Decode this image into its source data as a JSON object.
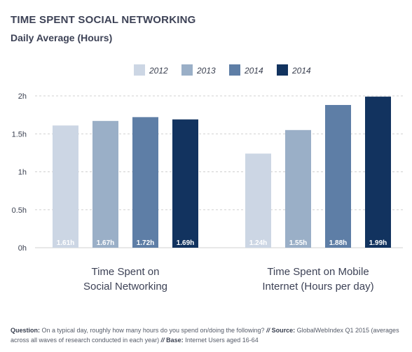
{
  "title": "TIME SPENT SOCIAL NETWORKING",
  "subtitle": "Daily Average (Hours)",
  "colors": {
    "s2012": "#ccd6e4",
    "s2013": "#9aafc7",
    "s2014a": "#5e7ea6",
    "s2014b": "#12335f",
    "grid": "#d0d0d0",
    "text": "#3a4050"
  },
  "chart_data": {
    "type": "bar",
    "title": "TIME SPENT SOCIAL NETWORKING",
    "subtitle": "Daily Average (Hours)",
    "categories": [
      "Time Spent on Social Networking",
      "Time Spent on Mobile Internet (Hours per day)"
    ],
    "category_lines": [
      [
        "Time Spent on",
        "Social Networking"
      ],
      [
        "Time Spent on Mobile",
        "Internet (Hours per day)"
      ]
    ],
    "series": [
      {
        "name": "2012",
        "values": [
          1.61,
          1.24
        ],
        "labels": [
          "1.61h",
          "1.24h"
        ],
        "color": "#ccd6e4"
      },
      {
        "name": "2013",
        "values": [
          1.67,
          1.55
        ],
        "labels": [
          "1.67h",
          "1.55h"
        ],
        "color": "#9aafc7"
      },
      {
        "name": "2014",
        "values": [
          1.72,
          1.88
        ],
        "labels": [
          "1.72h",
          "1.88h"
        ],
        "color": "#5e7ea6"
      },
      {
        "name": "2014",
        "values": [
          1.69,
          1.99
        ],
        "labels": [
          "1.69h",
          "1.99h"
        ],
        "color": "#12335f"
      }
    ],
    "yticks": [
      "0h",
      "0.5h",
      "1h",
      "1.5h",
      "2h"
    ],
    "ytick_values": [
      0,
      0.5,
      1,
      1.5,
      2
    ],
    "ylim": [
      0,
      2
    ],
    "grid": true,
    "legend_position": "top-center"
  },
  "footnote": {
    "question_label": "Question:",
    "question_text": "On a typical day, roughly how many hours do you spend on/doing the following?",
    "separator": "//",
    "source_label": "Source:",
    "source_text": "GlobalWebIndex Q1 2015 (averages across all waves of research conducted in each year)",
    "base_label": "Base:",
    "base_text": "Internet Users aged 16-64"
  }
}
